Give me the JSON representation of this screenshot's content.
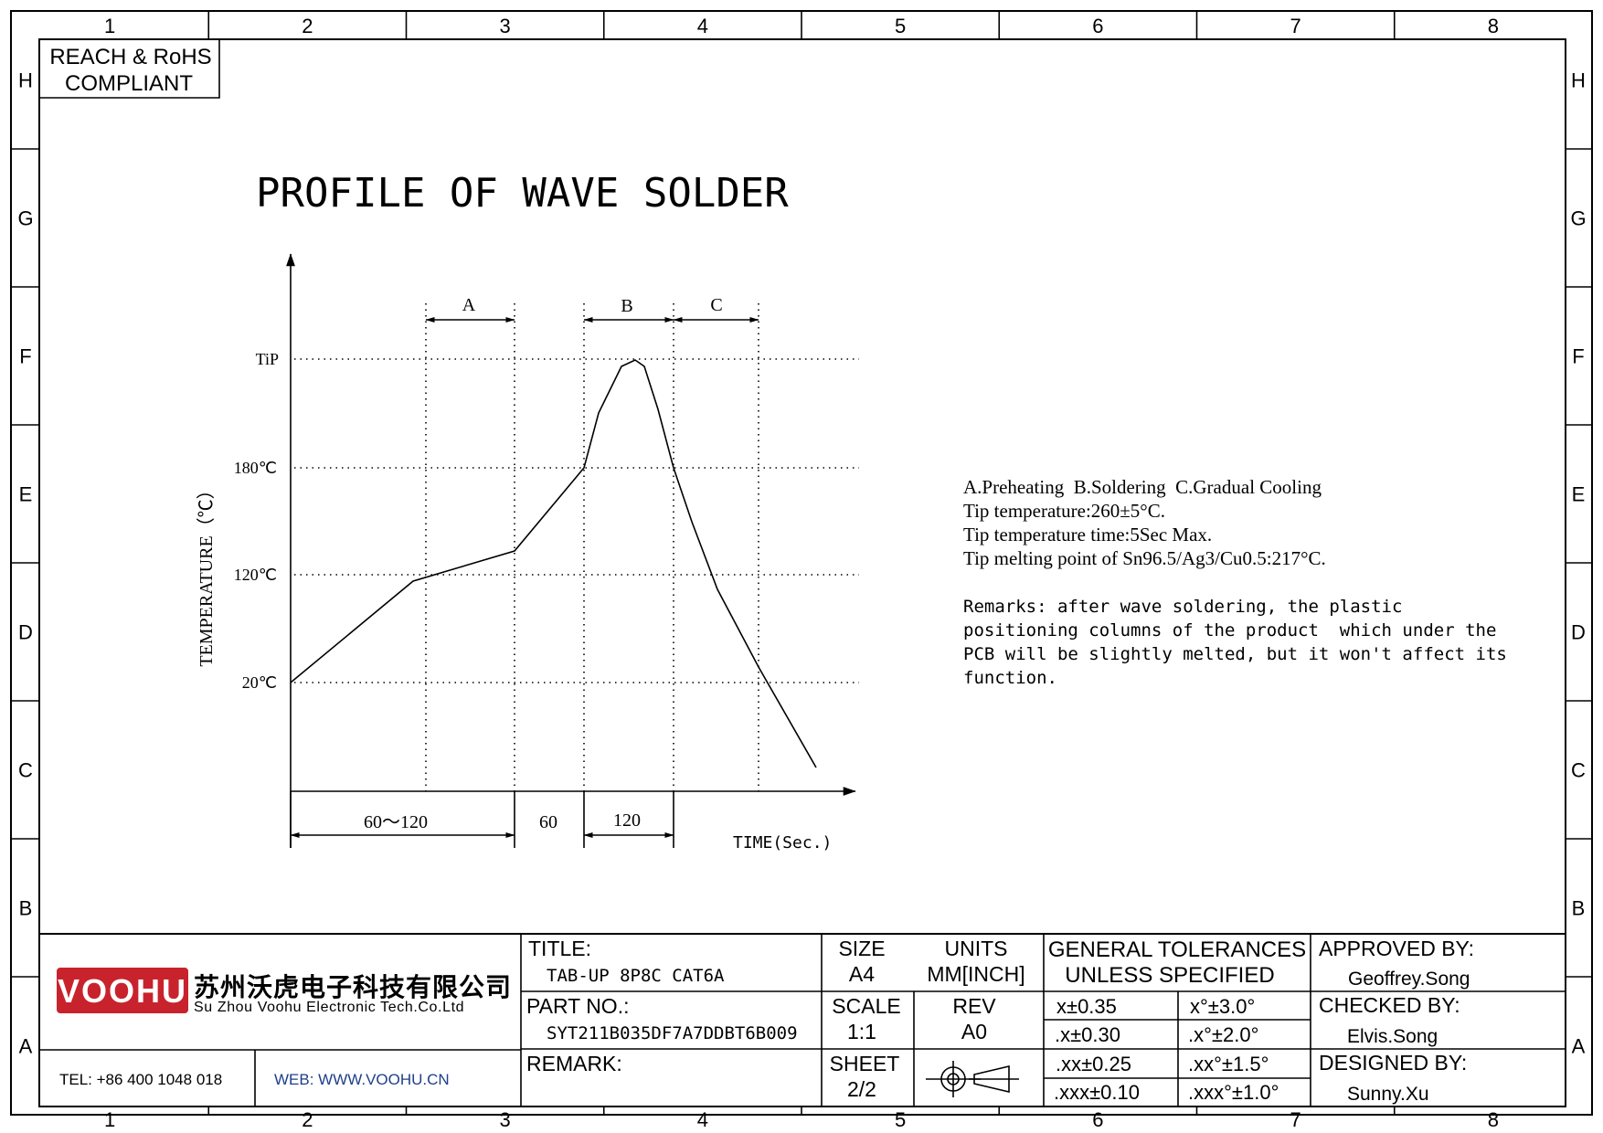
{
  "frame": {
    "columns": [
      "1",
      "2",
      "3",
      "4",
      "5",
      "6",
      "7",
      "8"
    ],
    "rows": [
      "H",
      "G",
      "F",
      "E",
      "D",
      "C",
      "B",
      "A"
    ]
  },
  "compliance": {
    "line1": "REACH & RoHS",
    "line2": "COMPLIANT"
  },
  "diagram": {
    "title": "PROFILE OF WAVE SOLDER",
    "y_axis_label": "TEMPERATURE（℃）",
    "x_axis_label": "TIME(Sec.)",
    "y_ticks": [
      "TiP",
      "180℃",
      "120℃",
      "20℃"
    ],
    "phases": [
      "A",
      "B",
      "C"
    ],
    "durations": [
      "60～120",
      "60",
      "120"
    ]
  },
  "notes": {
    "lines": [
      "A.Preheating  B.Soldering  C.Gradual Cooling",
      "Tip temperature:260±5°C.",
      "Tip temperature time:5Sec Max.",
      "Tip melting point of Sn96.5/Ag3/Cu0.5:217°C."
    ],
    "remarks": [
      "Remarks: after wave soldering, the plastic",
      "positioning columns of the product  which under the",
      "PCB will be slightly melted, but it won't affect its",
      "function."
    ]
  },
  "title_block": {
    "brand": "VOOHU",
    "company_cn": "苏州沃虎电子科技有限公司",
    "company_en": "Su Zhou Voohu Electronic Tech.Co.Ltd",
    "tel": "TEL: +86 400 1048 018",
    "web": "WEB: WWW.VOOHU.CN",
    "title_label": "TITLE:",
    "title_value": "TAB-UP 8P8C CAT6A",
    "part_label": "PART NO.:",
    "part_value": "SYT211B035DF7A7DDBT6B009",
    "remark_label": "REMARK:",
    "size_label": "SIZE",
    "size_value": "A4",
    "units_label": "UNITS",
    "units_value": "MM[INCH]",
    "scale_label": "SCALE",
    "scale_value": "1:1",
    "rev_label": "REV",
    "rev_value": "A0",
    "sheet_label": "SHEET",
    "sheet_value": "2/2",
    "tol_title_1": "GENERAL TOLERANCES",
    "tol_title_2": "UNLESS SPECIFIED",
    "tolerances": [
      [
        "x±0.35",
        "x°±3.0°"
      ],
      [
        ".x±0.30",
        ".x°±2.0°"
      ],
      [
        ".xx±0.25",
        ".xx°±1.5°"
      ],
      [
        ".xxx±0.10",
        ".xxx°±1.0°"
      ]
    ],
    "approved_label": "APPROVED BY:",
    "approved_value": "Geoffrey.Song",
    "checked_label": "CHECKED BY:",
    "checked_value": "Elvis.Song",
    "designed_label": "DESIGNED BY:",
    "designed_value": "Sunny.Xu"
  },
  "colors": {
    "brand_red": "#c8232c",
    "web_blue": "#1f3f8a"
  }
}
